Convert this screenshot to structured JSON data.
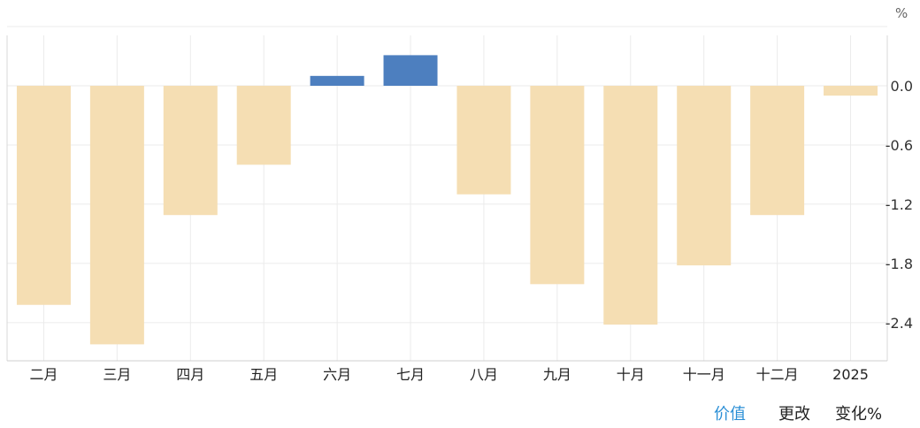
{
  "chart_data": {
    "type": "bar",
    "unit": "%",
    "categories": [
      "二月",
      "三月",
      "四月",
      "五月",
      "六月",
      "七月",
      "八月",
      "九月",
      "十月",
      "十一月",
      "十二月",
      "2025"
    ],
    "values": [
      -2.22,
      -2.62,
      -1.31,
      -0.8,
      0.1,
      0.31,
      -1.1,
      -2.01,
      -2.42,
      -1.82,
      -1.31,
      -0.1
    ],
    "ylim": [
      -2.8,
      0.55
    ],
    "y_ticks": [
      0.0,
      -0.6,
      -1.2,
      -1.8,
      -2.4
    ],
    "y_tick_labels": [
      "0.0",
      "-0.6",
      "-1.2",
      "-1.8",
      "-2.4"
    ],
    "colors": {
      "positive": "#4d7fbf",
      "negative": "#f5deb3",
      "grid": "#ebebeb"
    },
    "grid": true,
    "y_axis_position": "right"
  },
  "tabs": {
    "value_label": "价值",
    "change_label": "更改",
    "change_pct_label": "变化%"
  }
}
